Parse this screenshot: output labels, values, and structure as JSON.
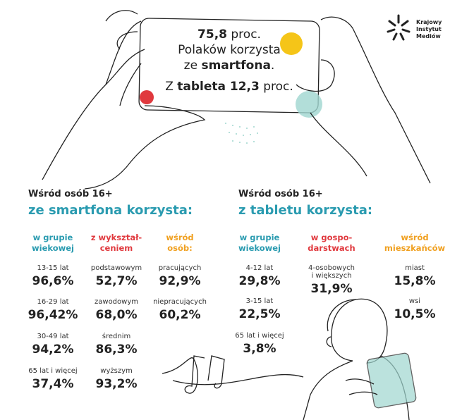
{
  "logo": [
    "Krajowy",
    "Instytut",
    "Mediów"
  ],
  "phone": {
    "line1": [
      "75,8",
      " proc."
    ],
    "line2": "Polaków korzysta",
    "line3": [
      "ze ",
      "smartfona",
      "."
    ],
    "line4": [
      "Z ",
      "tableta 12,3",
      " proc."
    ]
  },
  "sections": [
    {
      "heading": "Wśród osób 16+",
      "subheading": "ze smartfona korzysta:",
      "columns": [
        {
          "title": [
            "w grupie",
            "wiekowej"
          ],
          "color": "#2a9bb0",
          "items": [
            {
              "label": [
                "13-15 lat"
              ],
              "value": "96,6%"
            },
            {
              "label": [
                "16-29 lat"
              ],
              "value": "96,42%"
            },
            {
              "label": [
                "30-49 lat"
              ],
              "value": "94,2%"
            },
            {
              "label": [
                "65 lat i więcej"
              ],
              "value": "37,4%"
            }
          ]
        },
        {
          "title": [
            "z wykształ-",
            "ceniem"
          ],
          "color": "#e0393e",
          "items": [
            {
              "label": [
                "podstawowym"
              ],
              "value": "52,7%"
            },
            {
              "label": [
                "zawodowym"
              ],
              "value": "68,0%"
            },
            {
              "label": [
                "średnim"
              ],
              "value": "86,3%"
            },
            {
              "label": [
                "wyższym"
              ],
              "value": "93,2%"
            }
          ]
        },
        {
          "title": [
            "wśród",
            "osób:"
          ],
          "color": "#f0a020",
          "items": [
            {
              "label": [
                "pracujących"
              ],
              "value": "92,9%"
            },
            {
              "label": [
                "niepracujących"
              ],
              "value": "60,2%"
            }
          ]
        }
      ]
    },
    {
      "heading": "Wśród osób 16+",
      "subheading": "z tabletu korzysta:",
      "columns": [
        {
          "title": [
            "w grupie",
            "wiekowej"
          ],
          "color": "#2a9bb0",
          "items": [
            {
              "label": [
                "4-12 lat"
              ],
              "value": "29,8%"
            },
            {
              "label": [
                "3-15 lat"
              ],
              "value": "22,5%"
            },
            {
              "label": [
                "65 lat i więcej"
              ],
              "value": "3,8%"
            }
          ]
        },
        {
          "title": [
            "w gospo-",
            "darstwach"
          ],
          "color": "#e0393e",
          "items": [
            {
              "label": [
                "4-osobowych",
                "i większych"
              ],
              "value": "31,9%"
            }
          ]
        },
        {
          "title": [
            "wśród",
            "mieszkańców"
          ],
          "color": "#f0a020",
          "items": [
            {
              "label": [
                "miast"
              ],
              "value": "15,8%"
            },
            {
              "label": [
                "wsi"
              ],
              "value": "10,5%"
            }
          ]
        }
      ]
    }
  ]
}
